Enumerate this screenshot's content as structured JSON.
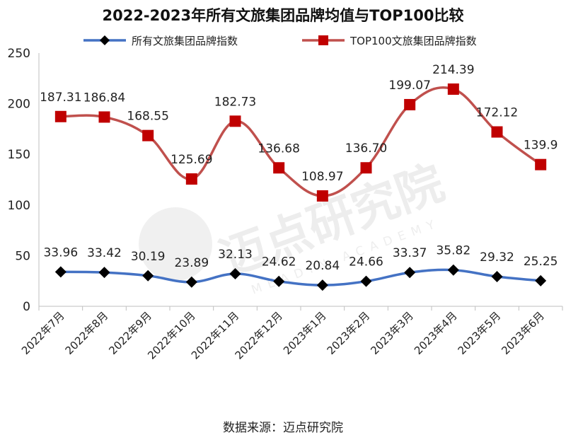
{
  "chart_data": {
    "type": "line",
    "title": "2022-2023年所有文旅集团品牌均值与TOP100比较",
    "categories": [
      "2022年7月",
      "2022年8月",
      "2022年9月",
      "2022年10月",
      "2022年11月",
      "2022年12月",
      "2023年1月",
      "2023年2月",
      "2023年3月",
      "2023年4月",
      "2023年5月",
      "2023年6月"
    ],
    "series": [
      {
        "name": "所有文旅集团品牌指数",
        "values": [
          33.96,
          33.42,
          30.19,
          23.89,
          32.13,
          24.62,
          20.84,
          24.66,
          33.37,
          35.82,
          29.32,
          25.25
        ],
        "labels": [
          "33.96",
          "33.42",
          "30.19",
          "23.89",
          "32.13",
          "24.62",
          "20.84",
          "24.66",
          "33.37",
          "35.82",
          "29.32",
          "25.25"
        ],
        "color": "#4472c4",
        "marker": "diamond",
        "marker_color": "#000000"
      },
      {
        "name": "TOP100文旅集团品牌指数",
        "values": [
          187.31,
          186.84,
          168.55,
          125.69,
          182.73,
          136.68,
          108.97,
          136.7,
          199.07,
          214.39,
          172.12,
          139.9
        ],
        "labels": [
          "187.31",
          "186.84",
          "168.55",
          "125.69",
          "182.73",
          "136.68",
          "108.97",
          "136.70",
          "199.07",
          "214.39",
          "172.12",
          "139.9"
        ],
        "color": "#c0504d",
        "marker": "square",
        "marker_color": "#c00000"
      }
    ],
    "xlabel": "",
    "ylabel": "",
    "ylim": [
      0,
      250
    ],
    "yticks": [
      "0",
      "50",
      "100",
      "150",
      "200",
      "250"
    ],
    "grid": false,
    "legend": "top-center",
    "source": "数据来源：迈点研究院"
  },
  "watermark": {
    "text": "迈点研究院",
    "subtext": "MEADIN ACADEMY"
  }
}
